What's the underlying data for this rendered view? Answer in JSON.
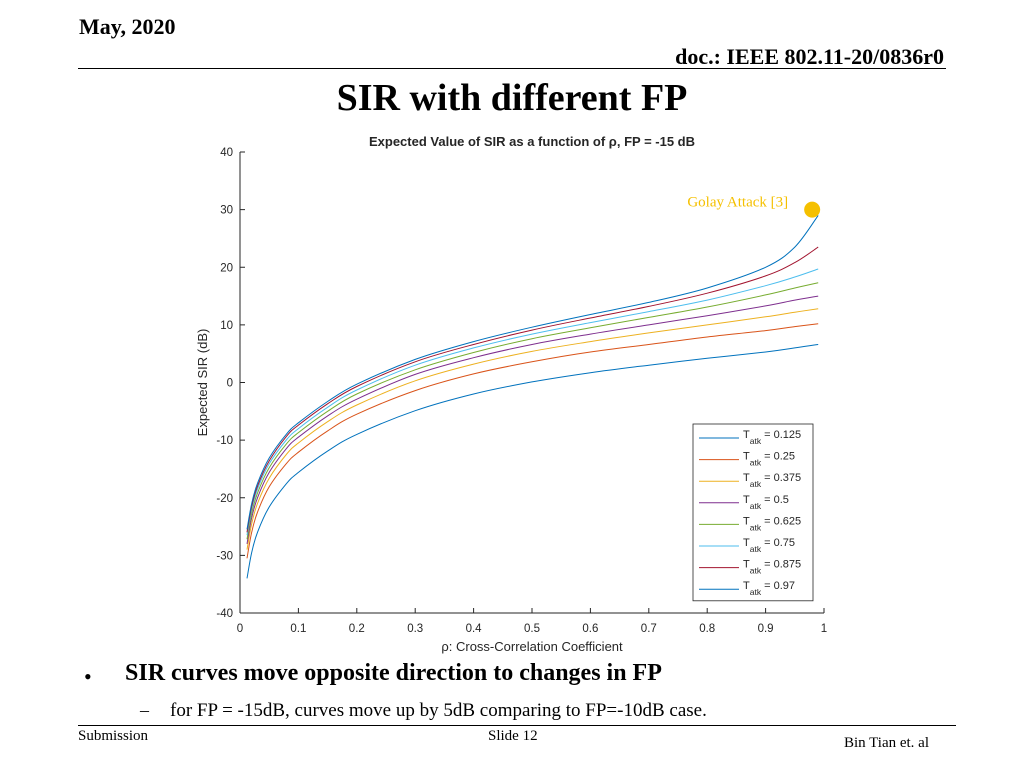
{
  "header": {
    "date": "May, 2020",
    "doc": "doc.: IEEE 802.11-20/0836r0"
  },
  "slide": {
    "title": "SIR with different FP",
    "bullet": "SIR curves move opposite direction to changes in FP",
    "sub_bullet": "for FP = -15dB, curves move up by 5dB comparing to FP=-10dB case.",
    "bullet_marker": "•",
    "sub_marker": "–"
  },
  "footer": {
    "left": "Submission",
    "center": "Slide 12",
    "right": "Bin Tian et. al"
  },
  "chart_data": {
    "type": "line",
    "title": "Expected Value of SIR as a function of  ρ, FP = -15 dB",
    "xlabel": "ρ: Cross-Correlation Coefficient",
    "ylabel": "Expected SIR (dB)",
    "xlim": [
      0,
      1
    ],
    "ylim": [
      -40,
      40
    ],
    "x_ticks": [
      "0",
      "0.1",
      "0.2",
      "0.3",
      "0.4",
      "0.5",
      "0.6",
      "0.7",
      "0.8",
      "0.9",
      "1"
    ],
    "y_ticks": [
      "40",
      "30",
      "20",
      "10",
      "0",
      "-10",
      "-20",
      "-30",
      "-40"
    ],
    "grid": false,
    "legend_position": "bottom-right",
    "x": [
      0.012,
      0.02,
      0.03,
      0.05,
      0.08,
      0.1,
      0.15,
      0.2,
      0.3,
      0.4,
      0.5,
      0.6,
      0.7,
      0.8,
      0.9,
      0.95,
      0.99
    ],
    "series": [
      {
        "name_prefix": "T",
        "name_sub": "atk",
        "name_suffix": " = 0.125",
        "color": "#0072BD",
        "values": [
          -34.0,
          -29.5,
          -26.0,
          -21.6,
          -17.5,
          -15.6,
          -11.9,
          -9.0,
          -4.9,
          -2.0,
          0.1,
          1.7,
          3.0,
          4.2,
          5.3,
          6.0,
          6.6
        ]
      },
      {
        "name_prefix": "T",
        "name_sub": "atk",
        "name_suffix": " = 0.25",
        "color": "#D95319",
        "values": [
          -30.5,
          -26.0,
          -22.5,
          -18.1,
          -14.0,
          -12.1,
          -8.4,
          -5.5,
          -1.4,
          1.5,
          3.6,
          5.3,
          6.6,
          7.9,
          9.0,
          9.7,
          10.2
        ]
      },
      {
        "name_prefix": "T",
        "name_sub": "atk",
        "name_suffix": " = 0.375",
        "color": "#EDB120",
        "values": [
          -29.0,
          -24.5,
          -21.0,
          -16.6,
          -12.4,
          -10.5,
          -6.8,
          -3.9,
          0.3,
          3.2,
          5.4,
          7.1,
          8.6,
          10.0,
          11.4,
          12.2,
          12.8
        ]
      },
      {
        "name_prefix": "T",
        "name_sub": "atk",
        "name_suffix": " = 0.5",
        "color": "#7E2F8E",
        "values": [
          -28.0,
          -23.5,
          -20.0,
          -15.6,
          -11.4,
          -9.5,
          -5.8,
          -2.9,
          1.4,
          4.3,
          6.6,
          8.4,
          10.0,
          11.6,
          13.3,
          14.3,
          15.0
        ]
      },
      {
        "name_prefix": "T",
        "name_sub": "atk",
        "name_suffix": " = 0.625",
        "color": "#77AC30",
        "values": [
          -27.2,
          -22.7,
          -19.2,
          -14.8,
          -10.6,
          -8.7,
          -5.0,
          -2.0,
          2.2,
          5.2,
          7.6,
          9.5,
          11.3,
          13.1,
          15.2,
          16.4,
          17.3
        ]
      },
      {
        "name_prefix": "T",
        "name_sub": "atk",
        "name_suffix": " = 0.75",
        "color": "#4DBEEE",
        "values": [
          -26.5,
          -22.0,
          -18.5,
          -14.1,
          -9.9,
          -8.0,
          -4.3,
          -1.3,
          3.0,
          6.0,
          8.4,
          10.4,
          12.3,
          14.3,
          16.8,
          18.3,
          19.7
        ]
      },
      {
        "name_prefix": "T",
        "name_sub": "atk",
        "name_suffix": " = 0.875",
        "color": "#A2142F",
        "values": [
          -26.0,
          -21.5,
          -18.0,
          -13.6,
          -9.3,
          -7.4,
          -3.7,
          -0.7,
          3.6,
          6.6,
          9.1,
          11.2,
          13.2,
          15.5,
          18.5,
          20.8,
          23.5
        ]
      },
      {
        "name_prefix": "T",
        "name_sub": "atk",
        "name_suffix": " = 0.97",
        "color": "#0072BD",
        "values": [
          -25.5,
          -21.0,
          -17.5,
          -13.1,
          -8.9,
          -7.0,
          -3.3,
          -0.3,
          4.0,
          7.1,
          9.6,
          11.8,
          13.9,
          16.4,
          20.0,
          23.5,
          29.0
        ]
      }
    ],
    "annotation": {
      "text": "Golay Attack [3]",
      "x": 0.99,
      "y": 30,
      "color": "#F5C000"
    }
  }
}
